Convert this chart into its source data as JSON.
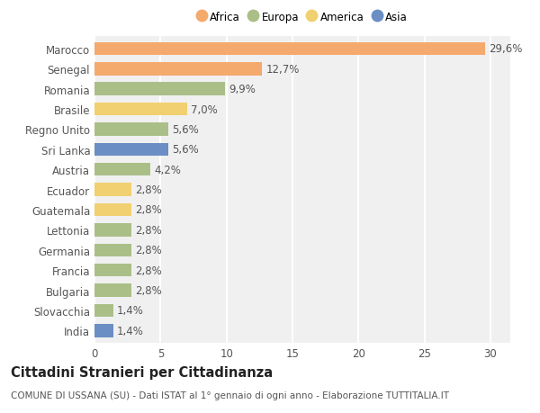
{
  "categories": [
    "Marocco",
    "Senegal",
    "Romania",
    "Brasile",
    "Regno Unito",
    "Sri Lanka",
    "Austria",
    "Ecuador",
    "Guatemala",
    "Lettonia",
    "Germania",
    "Francia",
    "Bulgaria",
    "Slovacchia",
    "India"
  ],
  "values": [
    29.6,
    12.7,
    9.9,
    7.0,
    5.6,
    5.6,
    4.2,
    2.8,
    2.8,
    2.8,
    2.8,
    2.8,
    2.8,
    1.4,
    1.4
  ],
  "colors": [
    "#F4A96D",
    "#F4A96D",
    "#AABF88",
    "#F0D070",
    "#AABF88",
    "#6B8EC4",
    "#AABF88",
    "#F0D070",
    "#F0D070",
    "#AABF88",
    "#AABF88",
    "#AABF88",
    "#AABF88",
    "#AABF88",
    "#6B8EC4"
  ],
  "labels": [
    "29,6%",
    "12,7%",
    "9,9%",
    "7,0%",
    "5,6%",
    "5,6%",
    "4,2%",
    "2,8%",
    "2,8%",
    "2,8%",
    "2,8%",
    "2,8%",
    "2,8%",
    "1,4%",
    "1,4%"
  ],
  "legend": [
    {
      "label": "Africa",
      "color": "#F4A96D"
    },
    {
      "label": "Europa",
      "color": "#AABF88"
    },
    {
      "label": "America",
      "color": "#F0D070"
    },
    {
      "label": "Asia",
      "color": "#6B8EC4"
    }
  ],
  "xlim": [
    0,
    31.5
  ],
  "xticks": [
    0,
    5,
    10,
    15,
    20,
    25,
    30
  ],
  "title": "Cittadini Stranieri per Cittadinanza",
  "subtitle": "COMUNE DI USSANA (SU) - Dati ISTAT al 1° gennaio di ogni anno - Elaborazione TUTTITALIA.IT",
  "background_color": "#FFFFFF",
  "plot_bg_color": "#F0F0F0",
  "grid_color": "#FFFFFF",
  "bar_height": 0.65,
  "label_fontsize": 8.5,
  "tick_fontsize": 8.5,
  "title_fontsize": 10.5,
  "subtitle_fontsize": 7.5
}
